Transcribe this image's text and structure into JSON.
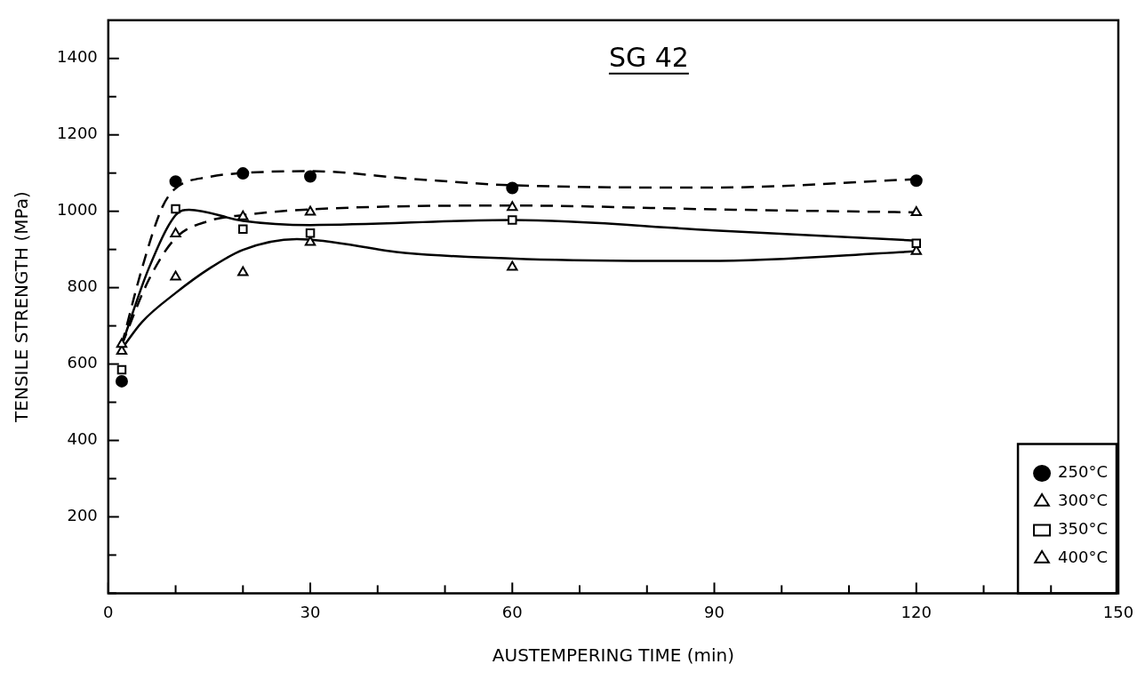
{
  "chart_data": {
    "type": "scatter",
    "title": "SG 42",
    "xlabel": "AUSTEMPERING TIME (min)",
    "ylabel": "TENSILE STRENGTH (MPa)",
    "xlim": [
      0,
      150
    ],
    "xticks": [
      0,
      {
        "value": 10,
        "label": null
      },
      {
        "value": 20,
        "label": null
      },
      30,
      {
        "value": 40,
        "label": null
      },
      {
        "value": 50,
        "label": null
      },
      60,
      {
        "value": 70,
        "label": null
      },
      {
        "value": 80,
        "label": null
      },
      90,
      {
        "value": 100,
        "label": null
      },
      {
        "value": 110,
        "label": null
      },
      120,
      {
        "value": 130,
        "label": null
      },
      {
        "value": 140,
        "label": null
      },
      150
    ],
    "ylim": [
      0,
      1500
    ],
    "yticks": [
      {
        "value": 0,
        "label": null
      },
      {
        "value": 100,
        "label": null
      },
      200,
      {
        "value": 300,
        "label": null
      },
      400,
      {
        "value": 500,
        "label": null
      },
      600,
      {
        "value": 700,
        "label": null
      },
      800,
      {
        "value": 900,
        "label": null
      },
      1000,
      {
        "value": 1100,
        "label": null
      },
      1200,
      {
        "value": 1300,
        "label": null
      },
      1400
    ],
    "grid": false,
    "legend": "bottom right",
    "series": [
      {
        "name": "250°C",
        "marker": "circle",
        "color": "#000000",
        "x": [
          2,
          10,
          20,
          30,
          60,
          120
        ],
        "values": [
          555,
          1078,
          1099,
          1091,
          1061,
          1080
        ]
      },
      {
        "name": "300°C",
        "marker": "triangle",
        "color": "#000000",
        "x": [
          2,
          10,
          20,
          30,
          60,
          120
        ],
        "values": [
          652,
          941,
          986,
          998,
          1010,
          997
        ]
      },
      {
        "name": "350°C",
        "marker": "square",
        "color": "#000000",
        "x": [
          2,
          10,
          20,
          30,
          60,
          120
        ],
        "values": [
          585,
          1006,
          953,
          943,
          977,
          916
        ]
      },
      {
        "name": "400°C",
        "marker": "triangle",
        "color": "#000000",
        "x": [
          2,
          10,
          20,
          30,
          60,
          120
        ],
        "values": [
          634,
          828,
          840,
          919,
          854,
          895
        ]
      },
      {
        "type": "line",
        "marker": "none",
        "line_style": "dashed",
        "color": "#000000",
        "x": [
          2,
          5,
          8,
          10,
          15,
          20,
          30,
          45,
          60,
          90,
          120
        ],
        "values": [
          650,
          850,
          1010,
          1060,
          1090,
          1100,
          1105,
          1085,
          1068,
          1062,
          1084
        ]
      },
      {
        "type": "line",
        "marker": "none",
        "line_style": "dashed",
        "color": "#000000",
        "x": [
          2,
          6,
          10,
          15,
          20,
          30,
          60,
          90,
          120
        ],
        "values": [
          650,
          820,
          930,
          975,
          990,
          1005,
          1015,
          1005,
          997
        ]
      },
      {
        "type": "line",
        "marker": "none",
        "line_style": "solid",
        "color": "#000000",
        "x": [
          2,
          6,
          10,
          12,
          20,
          30,
          60,
          90,
          120
        ],
        "values": [
          650,
          850,
          990,
          1004,
          975,
          964,
          977,
          950,
          923
        ]
      },
      {
        "type": "line",
        "marker": "none",
        "line_style": "solid",
        "color": "#000000",
        "x": [
          2,
          5,
          10,
          15,
          20,
          28,
          44,
          62,
          89,
          120
        ],
        "values": [
          640,
          710,
          786,
          850,
          899,
          927,
          891,
          875,
          870,
          895
        ]
      }
    ]
  }
}
